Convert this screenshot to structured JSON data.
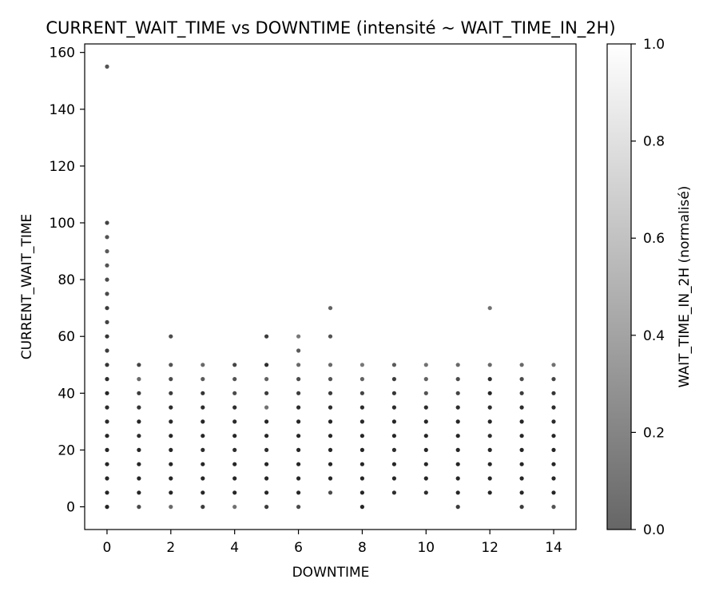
{
  "chart_data": {
    "type": "scatter",
    "title": "CURRENT_WAIT_TIME vs DOWNTIME (intensité ~ WAIT_TIME_IN_2H)",
    "xlabel": "DOWNTIME",
    "ylabel": "CURRENT_WAIT_TIME",
    "xlim": [
      -0.7,
      14.7
    ],
    "ylim": [
      -8,
      163
    ],
    "xticks": [
      0,
      2,
      4,
      6,
      8,
      10,
      12,
      14
    ],
    "yticks": [
      0,
      20,
      40,
      60,
      80,
      100,
      120,
      140,
      160
    ],
    "grid": false,
    "colormap": "gray",
    "colorbar": {
      "label": "WAIT_TIME_IN_2H (normalisé)",
      "range": [
        0,
        1
      ],
      "ticks": [
        "0.0",
        "0.2",
        "0.4",
        "0.6",
        "0.8",
        "1.0"
      ],
      "low_color": "#666666",
      "high_color": "#ffffff"
    },
    "series": [
      {
        "points": [
          [
            0,
            0,
            0.05
          ],
          [
            0,
            5,
            0.05
          ],
          [
            0,
            10,
            0.05
          ],
          [
            0,
            15,
            0.05
          ],
          [
            0,
            20,
            0.05
          ],
          [
            0,
            25,
            0.05
          ],
          [
            0,
            30,
            0.08
          ],
          [
            0,
            35,
            0.1
          ],
          [
            0,
            40,
            0.05
          ],
          [
            0,
            45,
            0.1
          ],
          [
            0,
            50,
            0.15
          ],
          [
            0,
            55,
            0.2
          ],
          [
            0,
            60,
            0.15
          ],
          [
            0,
            65,
            0.25
          ],
          [
            0,
            70,
            0.2
          ],
          [
            0,
            75,
            0.3
          ],
          [
            0,
            80,
            0.3
          ],
          [
            0,
            85,
            0.35
          ],
          [
            0,
            90,
            0.4
          ],
          [
            0,
            95,
            0.35
          ],
          [
            0,
            100,
            0.25
          ],
          [
            0,
            155,
            0.35
          ],
          [
            1,
            0,
            0.3
          ],
          [
            1,
            5,
            0.05
          ],
          [
            1,
            10,
            0.05
          ],
          [
            1,
            15,
            0.05
          ],
          [
            1,
            20,
            0.05
          ],
          [
            1,
            25,
            0.1
          ],
          [
            1,
            30,
            0.05
          ],
          [
            1,
            35,
            0.15
          ],
          [
            1,
            40,
            0.2
          ],
          [
            1,
            45,
            0.5
          ],
          [
            1,
            50,
            0.25
          ],
          [
            2,
            0,
            0.5
          ],
          [
            2,
            5,
            0.05
          ],
          [
            2,
            10,
            0.05
          ],
          [
            2,
            15,
            0.05
          ],
          [
            2,
            20,
            0.05
          ],
          [
            2,
            25,
            0.05
          ],
          [
            2,
            30,
            0.08
          ],
          [
            2,
            35,
            0.1
          ],
          [
            2,
            40,
            0.2
          ],
          [
            2,
            45,
            0.3
          ],
          [
            2,
            50,
            0.35
          ],
          [
            2,
            60,
            0.3
          ],
          [
            3,
            0,
            0.2
          ],
          [
            3,
            5,
            0.05
          ],
          [
            3,
            10,
            0.05
          ],
          [
            3,
            15,
            0.05
          ],
          [
            3,
            20,
            0.1
          ],
          [
            3,
            25,
            0.05
          ],
          [
            3,
            30,
            0.05
          ],
          [
            3,
            35,
            0.1
          ],
          [
            3,
            40,
            0.15
          ],
          [
            3,
            45,
            0.4
          ],
          [
            3,
            50,
            0.5
          ],
          [
            4,
            0,
            0.55
          ],
          [
            4,
            5,
            0.05
          ],
          [
            4,
            10,
            0.05
          ],
          [
            4,
            15,
            0.05
          ],
          [
            4,
            20,
            0.1
          ],
          [
            4,
            25,
            0.05
          ],
          [
            4,
            30,
            0.08
          ],
          [
            4,
            35,
            0.1
          ],
          [
            4,
            40,
            0.3
          ],
          [
            4,
            45,
            0.35
          ],
          [
            4,
            50,
            0.25
          ],
          [
            5,
            0,
            0.2
          ],
          [
            5,
            5,
            0.05
          ],
          [
            5,
            10,
            0.05
          ],
          [
            5,
            15,
            0.05
          ],
          [
            5,
            20,
            0.1
          ],
          [
            5,
            25,
            0.05
          ],
          [
            5,
            30,
            0.05
          ],
          [
            5,
            35,
            0.55
          ],
          [
            5,
            40,
            0.2
          ],
          [
            5,
            45,
            0.45
          ],
          [
            5,
            50,
            0.1
          ],
          [
            5,
            60,
            0.2
          ],
          [
            6,
            0,
            0.3
          ],
          [
            6,
            5,
            0.05
          ],
          [
            6,
            10,
            0.05
          ],
          [
            6,
            15,
            0.05
          ],
          [
            6,
            20,
            0.05
          ],
          [
            6,
            25,
            0.05
          ],
          [
            6,
            30,
            0.05
          ],
          [
            6,
            35,
            0.1
          ],
          [
            6,
            40,
            0.2
          ],
          [
            6,
            45,
            0.3
          ],
          [
            6,
            50,
            0.5
          ],
          [
            6,
            55,
            0.4
          ],
          [
            6,
            60,
            0.6
          ],
          [
            7,
            5,
            0.3
          ],
          [
            7,
            10,
            0.05
          ],
          [
            7,
            15,
            0.05
          ],
          [
            7,
            20,
            0.05
          ],
          [
            7,
            25,
            0.05
          ],
          [
            7,
            30,
            0.05
          ],
          [
            7,
            35,
            0.1
          ],
          [
            7,
            40,
            0.2
          ],
          [
            7,
            45,
            0.35
          ],
          [
            7,
            50,
            0.5
          ],
          [
            7,
            60,
            0.35
          ],
          [
            7,
            70,
            0.45
          ],
          [
            8,
            0,
            0.05
          ],
          [
            8,
            5,
            0.05
          ],
          [
            8,
            10,
            0.05
          ],
          [
            8,
            15,
            0.05
          ],
          [
            8,
            20,
            0.05
          ],
          [
            8,
            25,
            0.05
          ],
          [
            8,
            30,
            0.08
          ],
          [
            8,
            35,
            0.1
          ],
          [
            8,
            40,
            0.25
          ],
          [
            8,
            45,
            0.45
          ],
          [
            8,
            50,
            0.6
          ],
          [
            9,
            5,
            0.1
          ],
          [
            9,
            10,
            0.05
          ],
          [
            9,
            15,
            0.05
          ],
          [
            9,
            20,
            0.1
          ],
          [
            9,
            25,
            0.05
          ],
          [
            9,
            30,
            0.05
          ],
          [
            9,
            35,
            0.1
          ],
          [
            9,
            40,
            0.15
          ],
          [
            9,
            45,
            0.2
          ],
          [
            9,
            50,
            0.4
          ],
          [
            10,
            5,
            0.1
          ],
          [
            10,
            10,
            0.05
          ],
          [
            10,
            15,
            0.05
          ],
          [
            10,
            20,
            0.05
          ],
          [
            10,
            25,
            0.05
          ],
          [
            10,
            30,
            0.05
          ],
          [
            10,
            35,
            0.1
          ],
          [
            10,
            40,
            0.35
          ],
          [
            10,
            45,
            0.45
          ],
          [
            10,
            50,
            0.55
          ],
          [
            11,
            0,
            0.2
          ],
          [
            11,
            5,
            0.05
          ],
          [
            11,
            10,
            0.05
          ],
          [
            11,
            15,
            0.05
          ],
          [
            11,
            20,
            0.05
          ],
          [
            11,
            25,
            0.05
          ],
          [
            11,
            30,
            0.05
          ],
          [
            11,
            35,
            0.1
          ],
          [
            11,
            40,
            0.25
          ],
          [
            11,
            45,
            0.3
          ],
          [
            11,
            50,
            0.5
          ],
          [
            12,
            5,
            0.05
          ],
          [
            12,
            10,
            0.05
          ],
          [
            12,
            15,
            0.05
          ],
          [
            12,
            20,
            0.05
          ],
          [
            12,
            25,
            0.1
          ],
          [
            12,
            30,
            0.05
          ],
          [
            12,
            35,
            0.1
          ],
          [
            12,
            40,
            0.05
          ],
          [
            12,
            45,
            0.1
          ],
          [
            12,
            50,
            0.5
          ],
          [
            12,
            70,
            0.55
          ],
          [
            13,
            0,
            0.2
          ],
          [
            13,
            5,
            0.05
          ],
          [
            13,
            10,
            0.05
          ],
          [
            13,
            15,
            0.05
          ],
          [
            13,
            20,
            0.05
          ],
          [
            13,
            25,
            0.05
          ],
          [
            13,
            30,
            0.05
          ],
          [
            13,
            35,
            0.1
          ],
          [
            13,
            40,
            0.2
          ],
          [
            13,
            45,
            0.3
          ],
          [
            13,
            50,
            0.5
          ],
          [
            14,
            0,
            0.35
          ],
          [
            14,
            5,
            0.05
          ],
          [
            14,
            10,
            0.05
          ],
          [
            14,
            15,
            0.05
          ],
          [
            14,
            20,
            0.05
          ],
          [
            14,
            25,
            0.05
          ],
          [
            14,
            30,
            0.08
          ],
          [
            14,
            35,
            0.1
          ],
          [
            14,
            40,
            0.15
          ],
          [
            14,
            45,
            0.25
          ],
          [
            14,
            50,
            0.55
          ]
        ]
      }
    ]
  }
}
